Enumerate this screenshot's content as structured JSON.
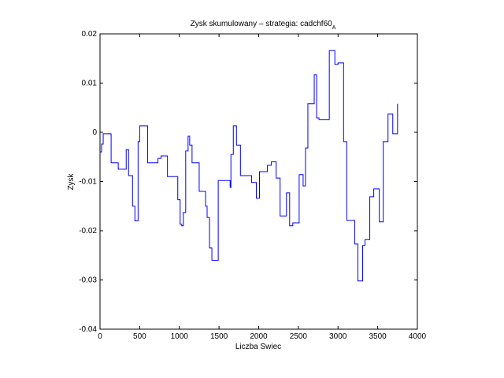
{
  "chart_data": {
    "type": "step",
    "title": "Zysk skumulowany – strategia: cadchf60",
    "title_subscript": "A",
    "x_label": "Liczba Swiec",
    "y_label": "Zysk",
    "color": "#0000ff",
    "xlim": [
      0,
      4000
    ],
    "xticks": [
      0,
      500,
      1000,
      1500,
      2000,
      2500,
      3000,
      3500,
      4000
    ],
    "ylim": [
      -0.04,
      0.02
    ],
    "yticks": [
      -0.04,
      -0.03,
      -0.02,
      -0.01,
      0,
      0.01,
      0.02
    ],
    "x": [
      0,
      20,
      40,
      140,
      230,
      330,
      360,
      410,
      440,
      480,
      500,
      530,
      600,
      730,
      770,
      850,
      980,
      1010,
      1030,
      1050,
      1080,
      1110,
      1130,
      1160,
      1250,
      1330,
      1350,
      1380,
      1410,
      1490,
      1640,
      1650,
      1680,
      1720,
      1770,
      1910,
      1970,
      2010,
      2110,
      2160,
      2220,
      2270,
      2350,
      2390,
      2430,
      2510,
      2560,
      2590,
      2620,
      2700,
      2730,
      2760,
      2890,
      2960,
      3000,
      3070,
      3110,
      3210,
      3250,
      3310,
      3340,
      3400,
      3450,
      3520,
      3570,
      3630,
      3690,
      3750
    ],
    "values": [
      -0.004,
      -0.0024,
      -0.0003,
      -0.0062,
      -0.0075,
      -0.0035,
      -0.0088,
      -0.015,
      -0.018,
      -0.0019,
      0.0013,
      0.0013,
      -0.0062,
      -0.0053,
      -0.0048,
      -0.009,
      -0.0137,
      -0.0187,
      -0.019,
      -0.0163,
      -0.0038,
      -0.0008,
      -0.0026,
      -0.0062,
      -0.012,
      -0.015,
      -0.0173,
      -0.0235,
      -0.026,
      -0.0098,
      -0.0112,
      -0.0045,
      0.0013,
      -0.0026,
      -0.0088,
      -0.0102,
      -0.0134,
      -0.008,
      -0.0067,
      -0.006,
      -0.0093,
      -0.017,
      -0.0123,
      -0.019,
      -0.0184,
      -0.0086,
      -0.0109,
      -0.0032,
      0.0058,
      0.0117,
      0.0029,
      0.0026,
      0.0166,
      0.0138,
      0.0141,
      -0.0019,
      -0.0179,
      -0.0227,
      -0.0302,
      -0.023,
      -0.0218,
      -0.0131,
      -0.0115,
      -0.0182,
      -0.0019,
      0.0037,
      -0.0003,
      0.0058
    ]
  }
}
